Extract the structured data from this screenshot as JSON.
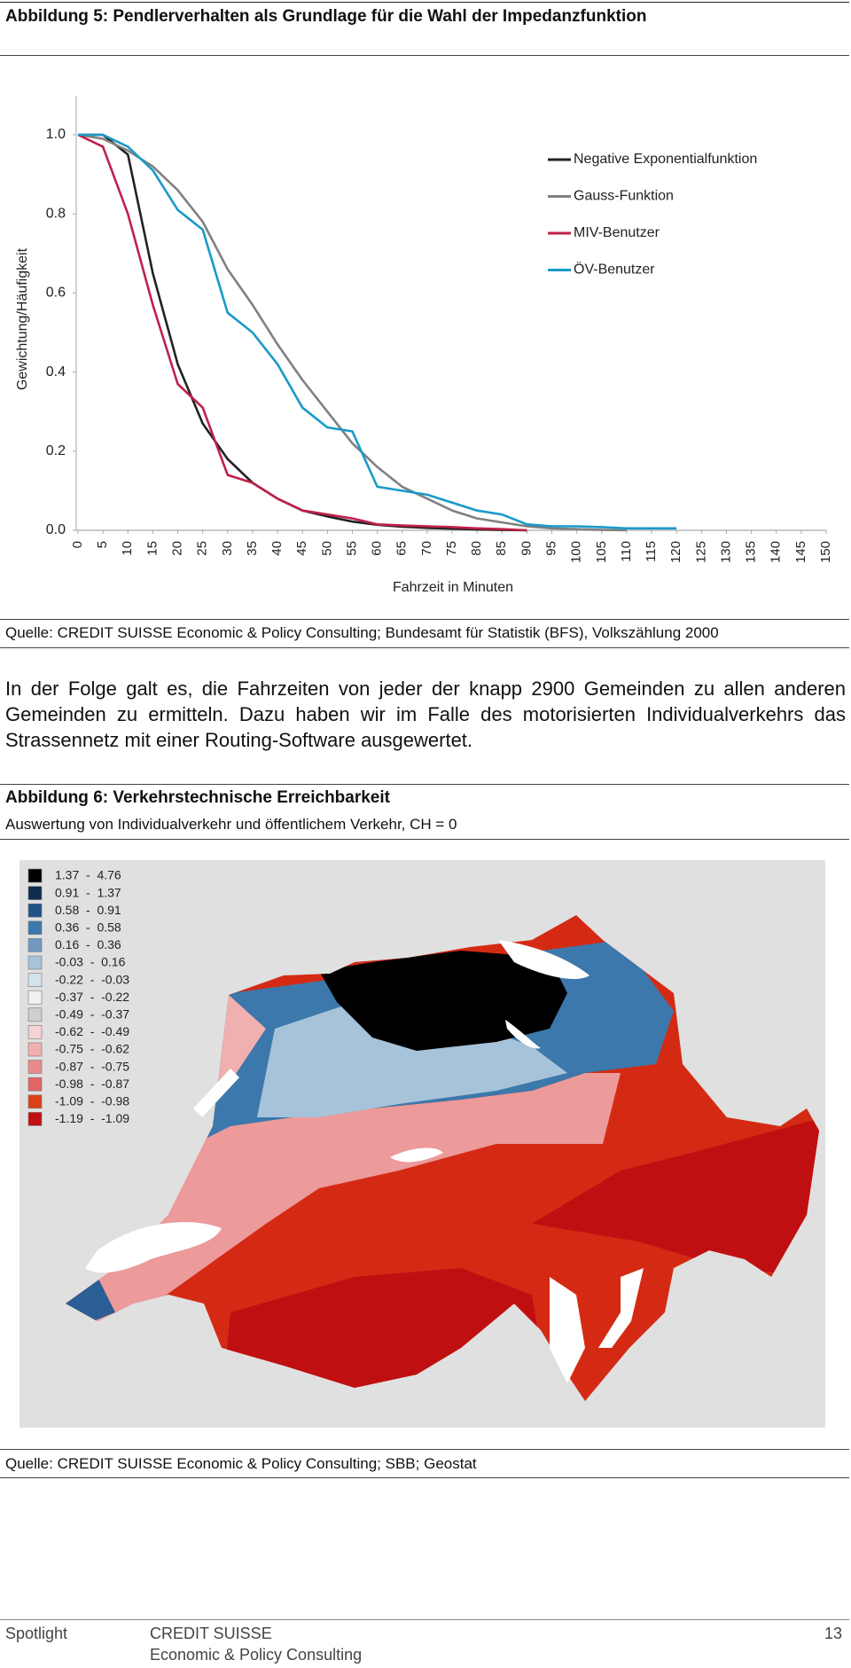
{
  "figure5": {
    "title": "Abbildung 5: Pendlerverhalten als Grundlage für die Wahl der Impedanzfunktion",
    "source": "Quelle: CREDIT SUISSE Economic & Policy Consulting; Bundesamt für Statistik (BFS), Volkszählung 2000"
  },
  "chart_data": {
    "type": "line",
    "x_label": "Fahrzeit in Minuten",
    "y_label": "Gewichtung/Häufigkeit",
    "x": [
      0,
      5,
      10,
      15,
      20,
      25,
      30,
      35,
      40,
      45,
      50,
      55,
      60,
      65,
      70,
      75,
      80,
      85,
      90,
      95,
      100,
      105,
      110,
      115,
      120,
      125,
      130,
      135,
      140,
      145,
      150
    ],
    "series": [
      {
        "name": "Negative Exponentialfunktion",
        "color": "#222222",
        "values": [
          1,
          1,
          0.95,
          0.65,
          0.42,
          0.27,
          0.18,
          0.12,
          0.08,
          0.05,
          0.035,
          0.022,
          0.014,
          0.009,
          0.006,
          0.004,
          0.002,
          0.001,
          0,
          null,
          null,
          null,
          null,
          null,
          null,
          null,
          null,
          null,
          null,
          null,
          null
        ]
      },
      {
        "name": "Gauss-Funktion",
        "color": "#808080",
        "values": [
          1,
          0.99,
          0.96,
          0.92,
          0.86,
          0.78,
          0.66,
          0.57,
          0.47,
          0.38,
          0.3,
          0.22,
          0.16,
          0.11,
          0.08,
          0.05,
          0.03,
          0.02,
          0.01,
          0.005,
          0.003,
          0.001,
          0,
          null,
          null,
          null,
          null,
          null,
          null,
          null,
          null
        ]
      },
      {
        "name": "MIV-Benutzer",
        "color": "#c0204a",
        "values": [
          1,
          0.97,
          0.8,
          0.57,
          0.37,
          0.31,
          0.14,
          0.12,
          0.08,
          0.05,
          0.04,
          0.03,
          0.015,
          0.012,
          0.01,
          0.008,
          0.005,
          0.003,
          0,
          null,
          null,
          null,
          null,
          null,
          null,
          null,
          null,
          null,
          null,
          null,
          null
        ]
      },
      {
        "name": "ÖV-Benutzer",
        "color": "#1a9ac9",
        "values": [
          1,
          1,
          0.97,
          0.91,
          0.81,
          0.76,
          0.55,
          0.5,
          0.42,
          0.31,
          0.26,
          0.25,
          0.11,
          0.1,
          0.09,
          0.07,
          0.05,
          0.04,
          0.015,
          0.01,
          0.01,
          0.008,
          0.005,
          0.005,
          0.005,
          null,
          null,
          null,
          null,
          null,
          null
        ]
      }
    ],
    "xlim": [
      0,
      150
    ],
    "ylim": [
      0,
      1
    ],
    "xticks": [
      0,
      5,
      10,
      15,
      20,
      25,
      30,
      35,
      40,
      45,
      50,
      55,
      60,
      65,
      70,
      75,
      80,
      85,
      90,
      95,
      100,
      105,
      110,
      115,
      120,
      125,
      130,
      135,
      140,
      145,
      150
    ],
    "yticks": [
      {
        "value": 0,
        "label": "0.0"
      },
      0.2,
      0.4,
      0.6,
      0.8,
      {
        "value": 1,
        "label": "1.0"
      }
    ],
    "grid": false,
    "legend": "upper right"
  },
  "paragraph": "In der Folge galt es, die Fahrzeiten von jeder der knapp 2900 Gemeinden zu allen anderen Gemeinden zu ermitteln. Dazu haben wir im Falle des motorisierten Individualverkehrs das Strassennetz mit einer Routing-Software ausgewertet.",
  "figure6": {
    "title": "Abbildung 6: Verkehrstechnische Erreichbarkeit",
    "subtitle": "Auswertung von Individualverkehr und öffentlichem Verkehr, CH = 0",
    "legend": [
      {
        "label": "1.37  -  4.76",
        "color": "#000000"
      },
      {
        "label": "0.91  -  1.37",
        "color": "#0d2c4f"
      },
      {
        "label": "0.58  -  0.91",
        "color": "#1f5285"
      },
      {
        "label": "0.36  -  0.58",
        "color": "#3c78ab"
      },
      {
        "label": "0.16  -  0.36",
        "color": "#7099bf"
      },
      {
        "label": "-0.03  -  0.16",
        "color": "#a7c3da"
      },
      {
        "label": "-0.22  -  -0.03",
        "color": "#d3e3ee"
      },
      {
        "label": "-0.37  -  -0.22",
        "color": "#f1f1f1"
      },
      {
        "label": "-0.49  -  -0.37",
        "color": "#cfcfcf"
      },
      {
        "label": "-0.62  -  -0.49",
        "color": "#f5d3d3"
      },
      {
        "label": "-0.75  -  -0.62",
        "color": "#f0b0b0"
      },
      {
        "label": "-0.87  -  -0.75",
        "color": "#ea8b8b"
      },
      {
        "label": "-0.98  -  -0.87",
        "color": "#e26565"
      },
      {
        "label": "-1.09  -  -0.98",
        "color": "#dc4016"
      },
      {
        "label": "-1.19  -  -1.09",
        "color": "#c00f10"
      }
    ],
    "source": "Quelle: CREDIT SUISSE Economic & Policy Consulting; SBB; Geostat"
  },
  "footer": {
    "section": "Spotlight",
    "company": "CREDIT SUISSE",
    "department": "Economic & Policy Consulting",
    "page": "13"
  }
}
